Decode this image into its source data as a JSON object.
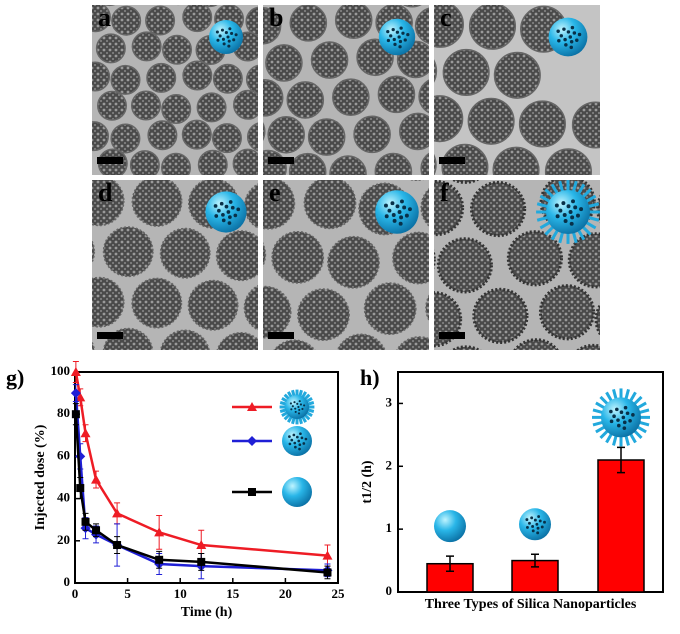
{
  "panels": [
    "a",
    "b",
    "c",
    "d",
    "e",
    "f"
  ],
  "chart_data": [
    {
      "type": "line",
      "label": "g)",
      "x_label": "Time (h)",
      "y_label": "Injected dose (%)",
      "x": [
        0.083,
        0.5,
        1,
        2,
        4,
        8,
        12,
        24
      ],
      "xlim": [
        0,
        25
      ],
      "xticks": [
        0,
        5,
        10,
        15,
        20,
        25
      ],
      "ylim": [
        0,
        100
      ],
      "yticks": [
        0,
        20,
        40,
        60,
        80,
        100
      ],
      "legend": "upper right",
      "series": [
        {
          "color": "#ee1c25",
          "marker": "triangle",
          "values": [
            100,
            88,
            71,
            49,
            33,
            24,
            18,
            13
          ],
          "errors": [
            5,
            4,
            4,
            4,
            5,
            8,
            7,
            5
          ]
        },
        {
          "color": "#1f1fd6",
          "marker": "diamond",
          "values": [
            90,
            60,
            26,
            23,
            18,
            9,
            8,
            6
          ],
          "errors": [
            4,
            6,
            5,
            4,
            10,
            5,
            6,
            3
          ]
        },
        {
          "color": "#000000",
          "marker": "square",
          "values": [
            80,
            45,
            29,
            25,
            18,
            11,
            10,
            5
          ],
          "errors": [
            5,
            5,
            4,
            3,
            4,
            4,
            4,
            3
          ]
        }
      ]
    },
    {
      "type": "bar",
      "label": "h)",
      "x_label": "Three Types of Silica Nanoparticles",
      "y_label": "t1/2 (h)",
      "categories": [
        null,
        null,
        null
      ],
      "values": [
        0.45,
        0.5,
        2.1
      ],
      "errors": [
        0.12,
        0.1,
        0.2
      ],
      "color": "#ff0000",
      "ylim": [
        0,
        3.5
      ],
      "yticks": [
        0,
        1,
        2,
        3
      ]
    }
  ]
}
